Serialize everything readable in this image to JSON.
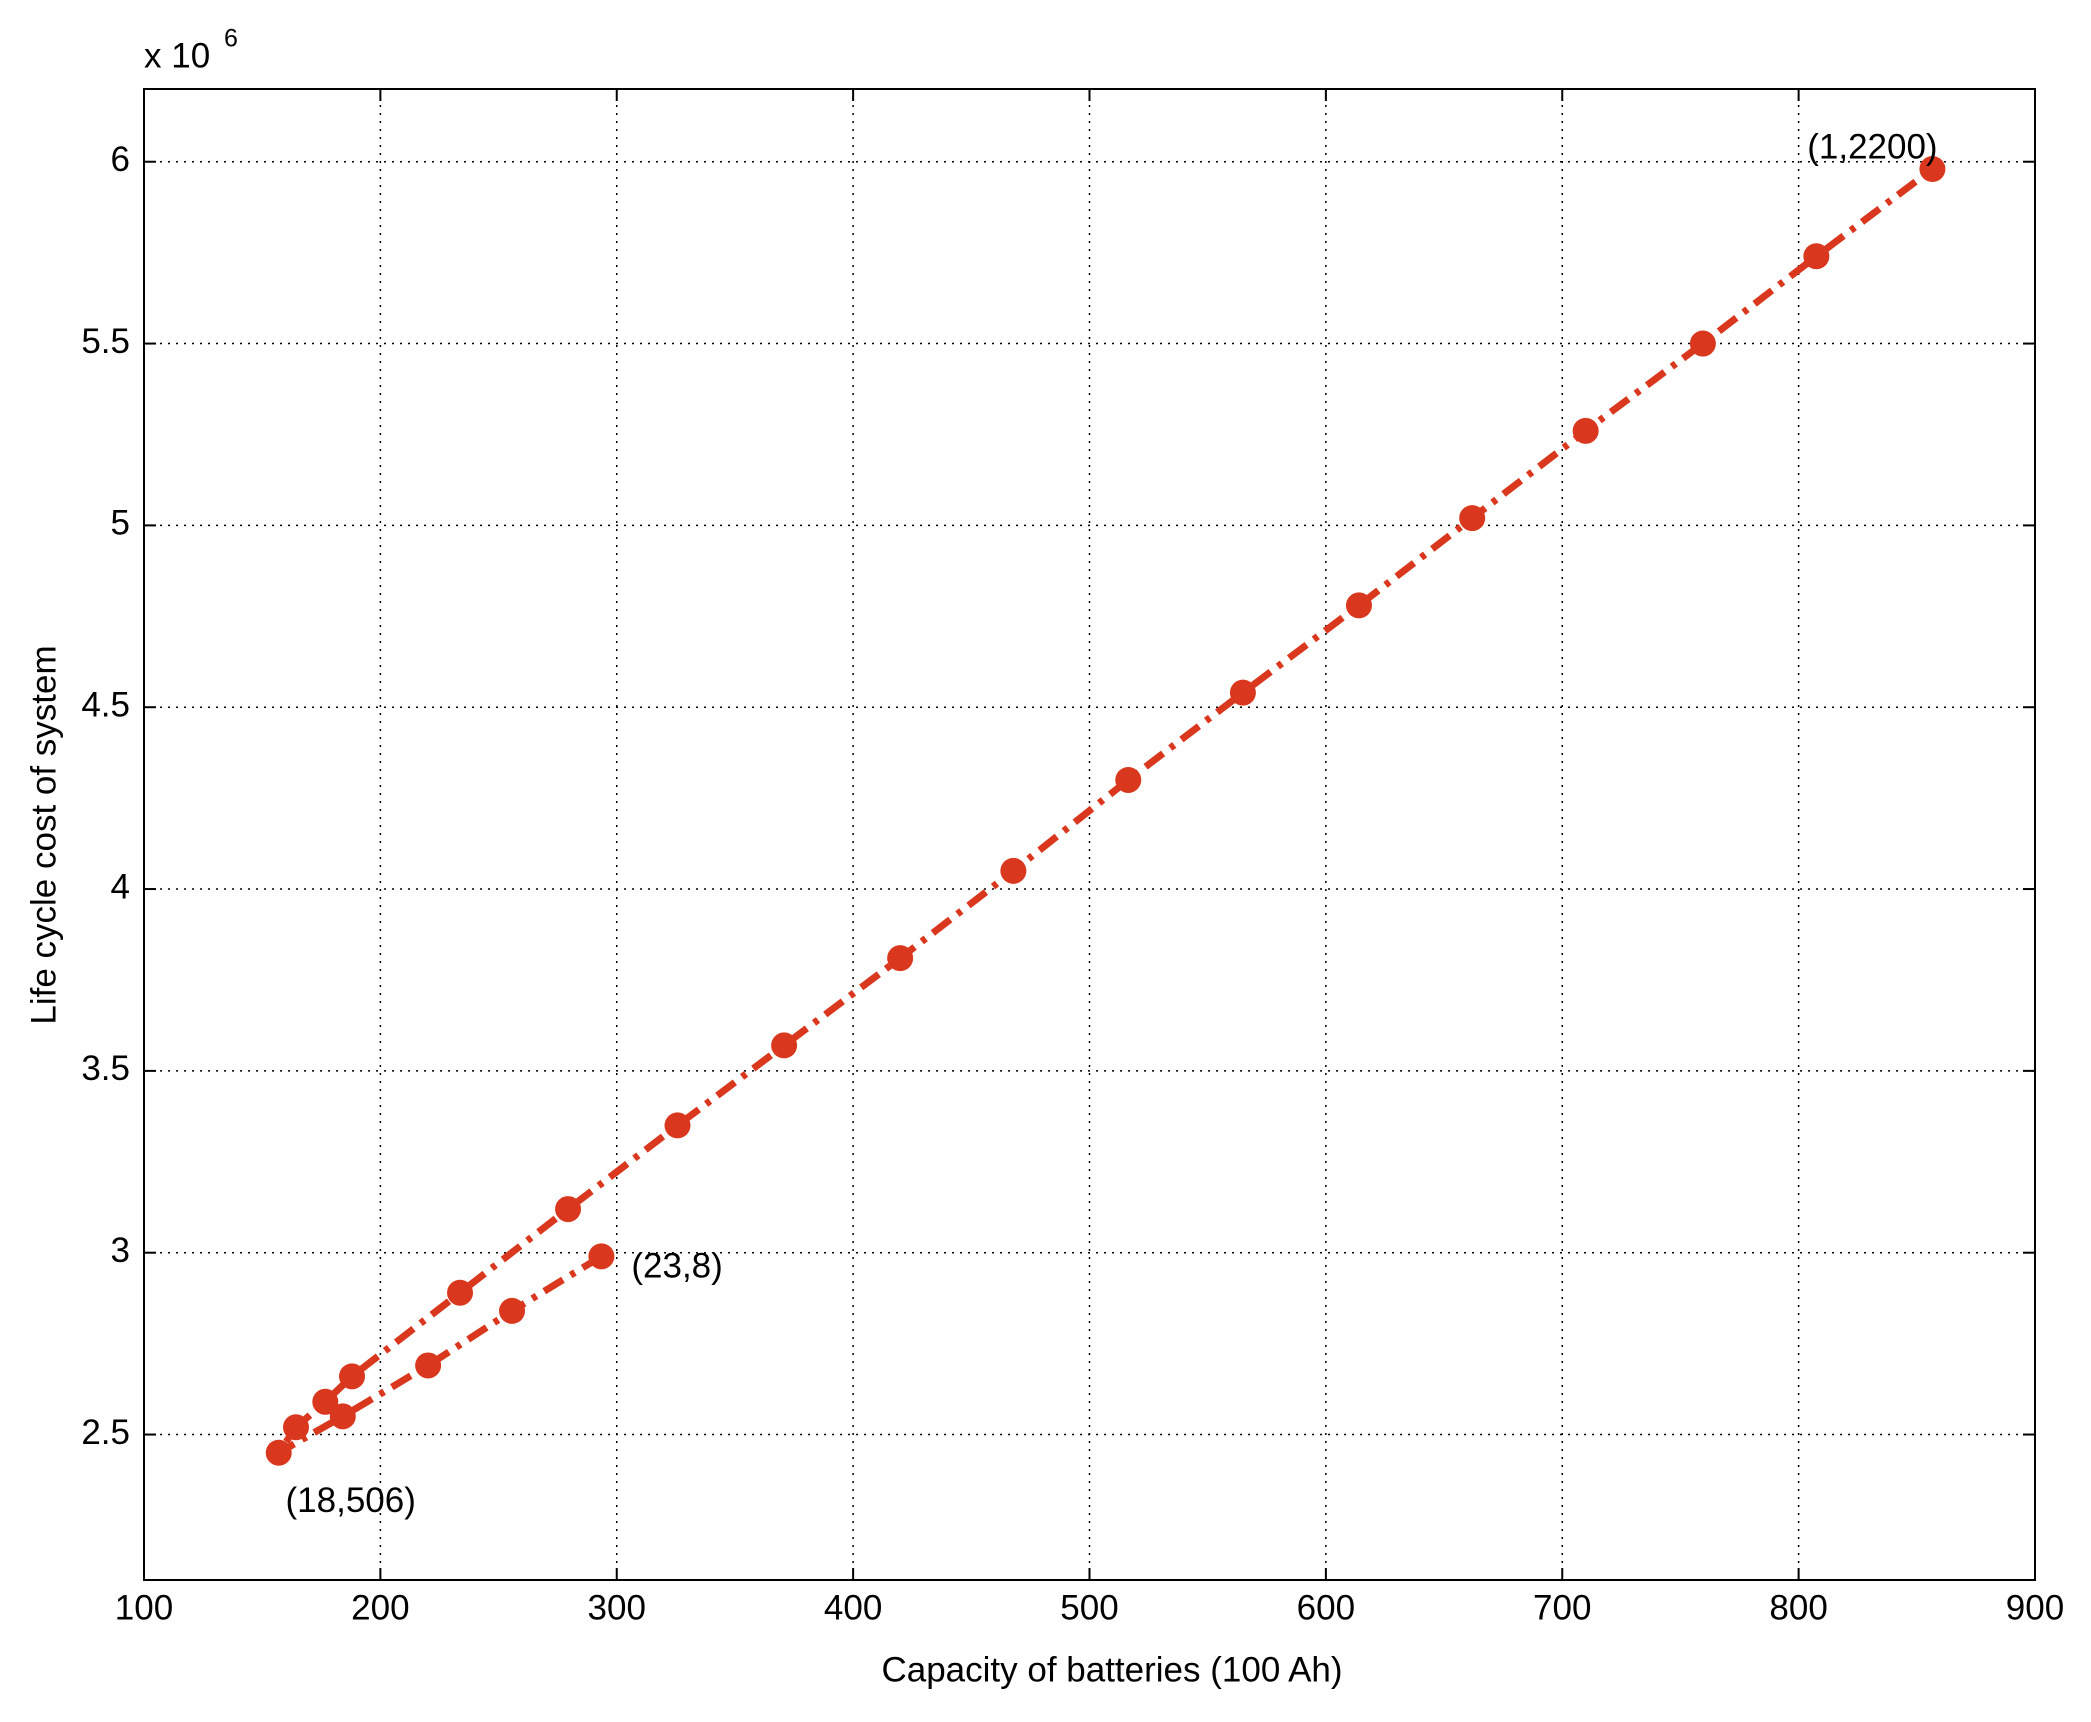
{
  "chart_data": {
    "type": "line",
    "xlabel": "Capacity of batteries (100 Ah)",
    "ylabel": "Life cycle cost of system",
    "y_scale_label": "x 10",
    "y_scale_exponent": "6",
    "x": [
      293.5,
      255.7,
      220.2,
      184.1,
      157.0,
      164.3,
      176.7,
      188.0,
      233.7,
      279.4,
      325.7,
      370.8,
      419.9,
      467.8,
      516.4,
      564.9,
      614.0,
      661.9,
      709.9,
      759.5,
      807.5,
      856.6
    ],
    "values": [
      2.99,
      2.84,
      2.69,
      2.55,
      2.45,
      2.52,
      2.59,
      2.66,
      2.89,
      3.12,
      3.35,
      3.57,
      3.81,
      4.05,
      4.3,
      4.54,
      4.78,
      5.02,
      5.26,
      5.5,
      5.74,
      5.98
    ],
    "color": "#d9381e",
    "xlim": [
      100,
      900
    ],
    "ylim": [
      2.1,
      6.2
    ],
    "xticks": [
      100,
      200,
      300,
      400,
      500,
      600,
      700,
      800,
      900
    ],
    "yticks": [
      2.5,
      3,
      3.5,
      4,
      4.5,
      5,
      5.5,
      6
    ],
    "grid": true,
    "annotations": [
      {
        "text": "(23,8)"
      },
      {
        "text": "(18,506)"
      },
      {
        "text": "(1,2200)"
      }
    ]
  }
}
